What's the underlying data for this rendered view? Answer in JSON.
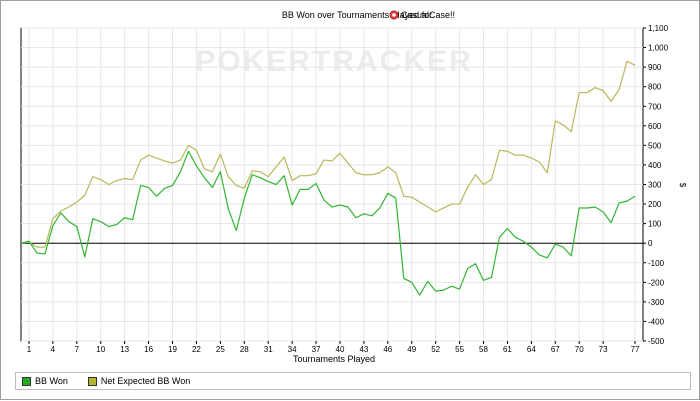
{
  "chart_data": {
    "type": "line",
    "title": "BB Won over Tournaments Played for",
    "player_name": "CasualCase!!",
    "player_icon": "poker-chip-icon",
    "watermark": "POKERTRACKER",
    "xlabel": "Tournaments Played",
    "ylabel": "$",
    "xlim": [
      0,
      78
    ],
    "ylim": [
      -500,
      1100
    ],
    "x_ticks": [
      1,
      4,
      7,
      10,
      13,
      16,
      19,
      22,
      25,
      28,
      31,
      34,
      37,
      40,
      43,
      46,
      49,
      52,
      55,
      58,
      61,
      64,
      67,
      70,
      73,
      77
    ],
    "y_ticks": [
      -500,
      -400,
      -300,
      -200,
      -100,
      0,
      100,
      200,
      300,
      400,
      500,
      600,
      700,
      800,
      900,
      1000,
      1100
    ],
    "y_tick_labels": [
      "-500",
      "-400",
      "-300",
      "-200",
      "-100",
      "0",
      "100",
      "200",
      "300",
      "400",
      "500",
      "600",
      "700",
      "800",
      "900",
      "1,000",
      "1,100"
    ],
    "grid": true,
    "legend_position": "bottom",
    "series": [
      {
        "name": "BB Won",
        "color": "#33b533",
        "swatch": "#22aa22",
        "values": [
          0,
          10,
          -50,
          -55,
          90,
          155,
          110,
          85,
          -70,
          125,
          110,
          85,
          95,
          130,
          120,
          295,
          285,
          240,
          280,
          295,
          365,
          470,
          395,
          335,
          285,
          365,
          175,
          65,
          230,
          350,
          335,
          315,
          300,
          345,
          195,
          275,
          275,
          305,
          220,
          185,
          195,
          185,
          130,
          150,
          140,
          180,
          255,
          230,
          -180,
          -200,
          -265,
          -195,
          -245,
          -240,
          -220,
          -235,
          -130,
          -105,
          -190,
          -175,
          30,
          75,
          30,
          10,
          -20,
          -60,
          -75,
          -5,
          -20,
          -65,
          180,
          180,
          185,
          160,
          105,
          205,
          215,
          240
        ]
      },
      {
        "name": "Net Expected BB Won",
        "color": "#b8b85a",
        "swatch": "#b5b535",
        "values": [
          0,
          5,
          -20,
          -20,
          125,
          165,
          185,
          210,
          245,
          340,
          325,
          300,
          320,
          330,
          325,
          425,
          450,
          435,
          420,
          410,
          425,
          500,
          475,
          380,
          365,
          455,
          340,
          295,
          280,
          370,
          365,
          340,
          390,
          440,
          320,
          345,
          345,
          355,
          425,
          420,
          460,
          410,
          360,
          350,
          350,
          360,
          390,
          360,
          240,
          235,
          210,
          185,
          160,
          180,
          200,
          200,
          285,
          350,
          300,
          325,
          475,
          470,
          450,
          450,
          435,
          415,
          360,
          625,
          605,
          570,
          770,
          770,
          795,
          780,
          725,
          785,
          930,
          910
        ]
      }
    ]
  }
}
